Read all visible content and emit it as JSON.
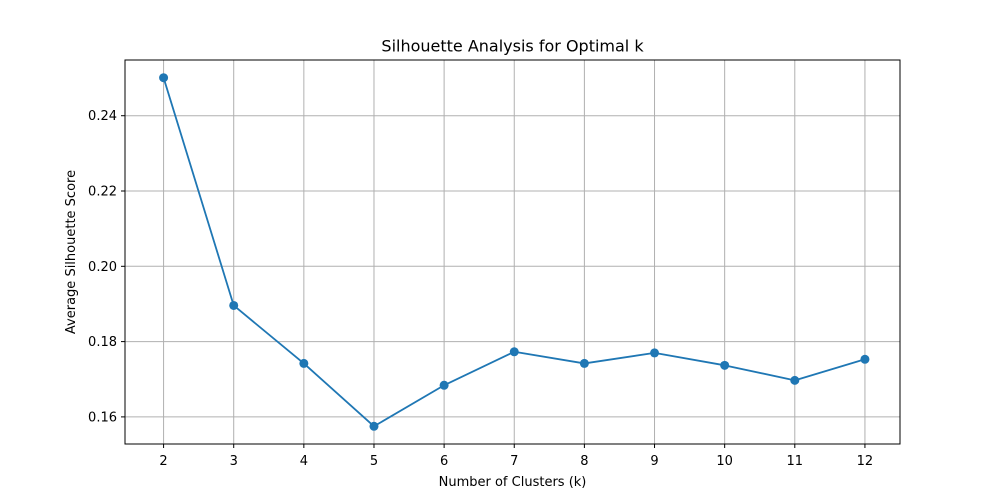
{
  "chart_data": {
    "type": "line",
    "title": "Silhouette Analysis for Optimal k",
    "xlabel": "Number of Clusters (k)",
    "ylabel": "Average Silhouette Score",
    "x": [
      2,
      3,
      4,
      5,
      6,
      7,
      8,
      9,
      10,
      11,
      12
    ],
    "series": [
      {
        "values": [
          0.2501,
          0.1896,
          0.1742,
          0.1575,
          0.1684,
          0.1773,
          0.1742,
          0.177,
          0.1737,
          0.1697,
          0.1753
        ],
        "color": "#1f77b4",
        "marker": "circle"
      }
    ],
    "xticks": [
      "2",
      "3",
      "4",
      "5",
      "6",
      "7",
      "8",
      "9",
      "10",
      "11",
      "12"
    ],
    "yticks": [
      "0.16",
      "0.18",
      "0.20",
      "0.22",
      "0.24"
    ],
    "ytick_values": [
      0.16,
      0.18,
      0.2,
      0.22,
      0.24
    ],
    "xlim": [
      1.45,
      12.5
    ],
    "ylim": [
      0.1528,
      0.2548
    ],
    "grid": true
  }
}
